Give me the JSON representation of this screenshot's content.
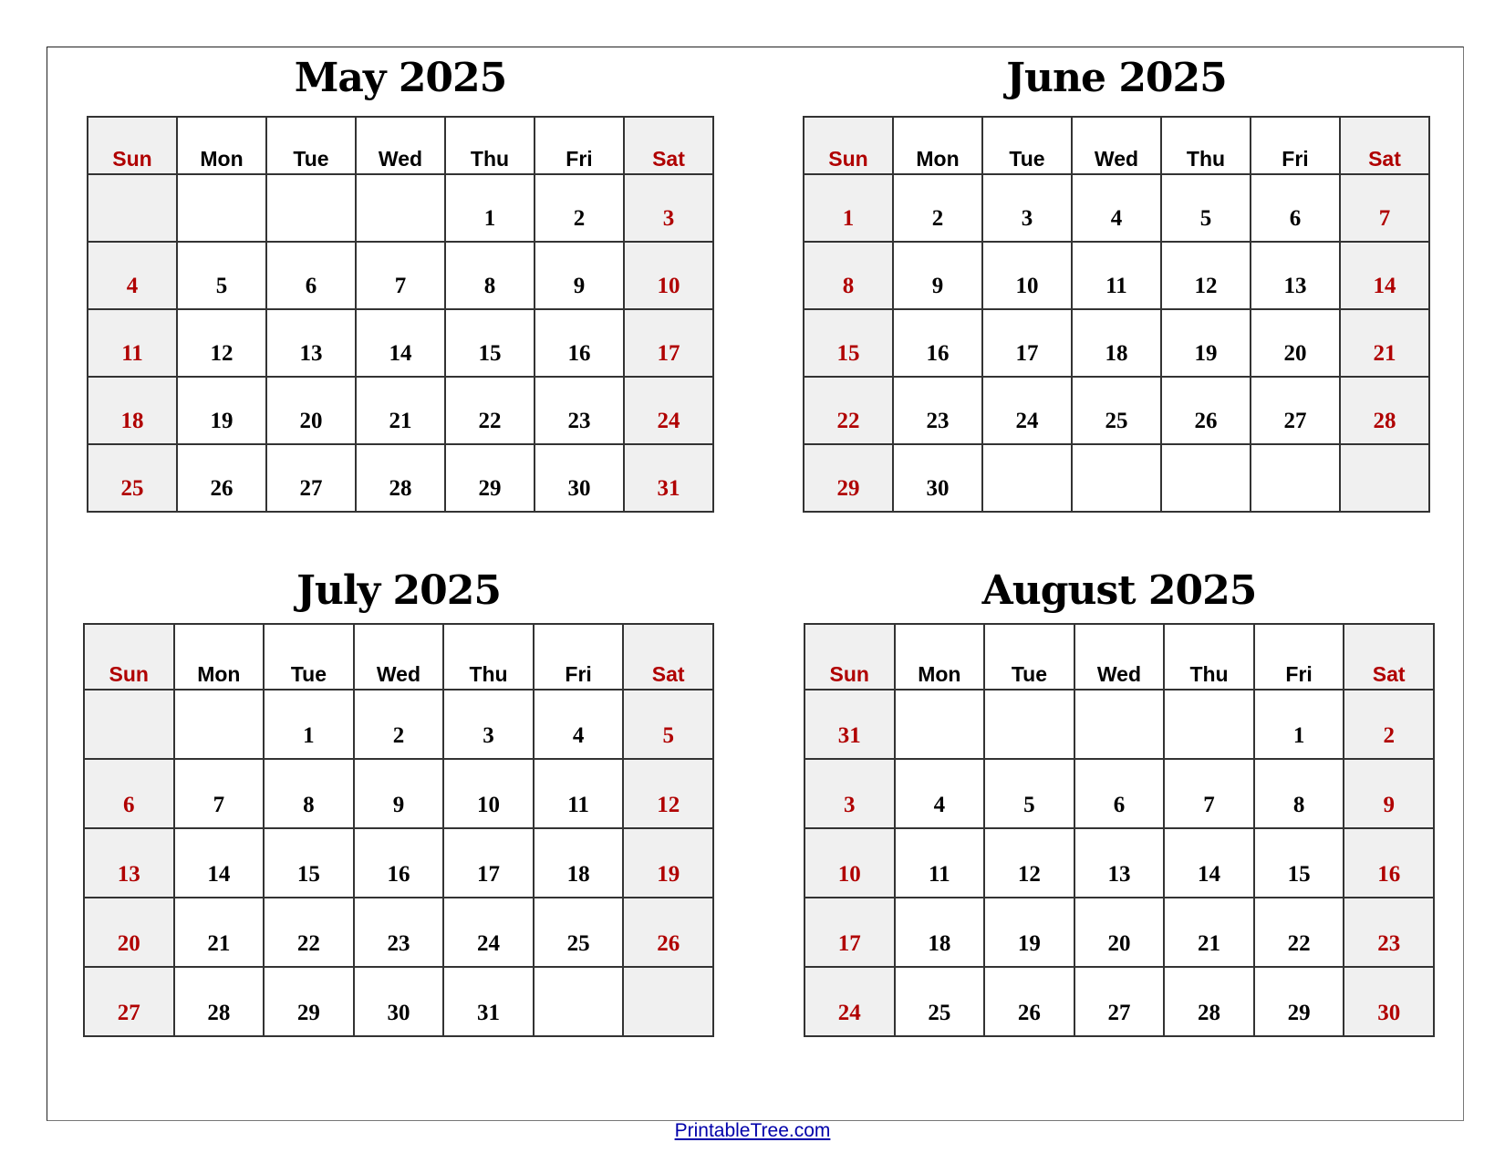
{
  "colors": {
    "weekend_text": "#b00000",
    "weekend_bg": "#f0f0f0",
    "link": "#0000aa"
  },
  "weekday_headers": [
    "Sun",
    "Mon",
    "Tue",
    "Wed",
    "Thu",
    "Fri",
    "Sat"
  ],
  "months": [
    {
      "title": "May 2025",
      "weeks": [
        [
          "",
          "",
          "",
          "",
          "1",
          "2",
          "3"
        ],
        [
          "4",
          "5",
          "6",
          "7",
          "8",
          "9",
          "10"
        ],
        [
          "11",
          "12",
          "13",
          "14",
          "15",
          "16",
          "17"
        ],
        [
          "18",
          "19",
          "20",
          "21",
          "22",
          "23",
          "24"
        ],
        [
          "25",
          "26",
          "27",
          "28",
          "29",
          "30",
          "31"
        ]
      ]
    },
    {
      "title": "June 2025",
      "weeks": [
        [
          "1",
          "2",
          "3",
          "4",
          "5",
          "6",
          "7"
        ],
        [
          "8",
          "9",
          "10",
          "11",
          "12",
          "13",
          "14"
        ],
        [
          "15",
          "16",
          "17",
          "18",
          "19",
          "20",
          "21"
        ],
        [
          "22",
          "23",
          "24",
          "25",
          "26",
          "27",
          "28"
        ],
        [
          "29",
          "30",
          "",
          "",
          "",
          "",
          ""
        ]
      ]
    },
    {
      "title": "July 2025",
      "weeks": [
        [
          "",
          "",
          "1",
          "2",
          "3",
          "4",
          "5"
        ],
        [
          "6",
          "7",
          "8",
          "9",
          "10",
          "11",
          "12"
        ],
        [
          "13",
          "14",
          "15",
          "16",
          "17",
          "18",
          "19"
        ],
        [
          "20",
          "21",
          "22",
          "23",
          "24",
          "25",
          "26"
        ],
        [
          "27",
          "28",
          "29",
          "30",
          "31",
          "",
          ""
        ]
      ]
    },
    {
      "title": "August 2025",
      "weeks": [
        [
          "31",
          "",
          "",
          "",
          "",
          "1",
          "2"
        ],
        [
          "3",
          "4",
          "5",
          "6",
          "7",
          "8",
          "9"
        ],
        [
          "10",
          "11",
          "12",
          "13",
          "14",
          "15",
          "16"
        ],
        [
          "17",
          "18",
          "19",
          "20",
          "21",
          "22",
          "23"
        ],
        [
          "24",
          "25",
          "26",
          "27",
          "28",
          "29",
          "30"
        ]
      ]
    }
  ],
  "footer": {
    "link": "PrintableTree.com"
  }
}
